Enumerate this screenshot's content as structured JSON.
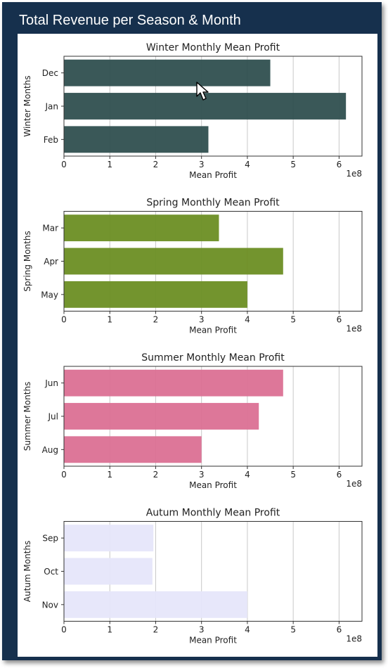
{
  "header": {
    "title": "Total Revenue per Season & Month"
  },
  "chart_data": [
    {
      "type": "bar",
      "orientation": "horizontal",
      "title": "Winter Monthly Mean Profit",
      "xlabel": "Mean Profit",
      "ylabel": "Winter Months",
      "categories": [
        "Dec",
        "Jan",
        "Feb"
      ],
      "values": [
        450000000,
        615000000,
        315000000
      ],
      "xlim": [
        0,
        650000000
      ],
      "xticks": [
        "0",
        "1",
        "2",
        "3",
        "4",
        "5",
        "6"
      ],
      "offset_label": "1e8",
      "grid": "vertical",
      "color": "#2f4f4f"
    },
    {
      "type": "bar",
      "orientation": "horizontal",
      "title": "Spring Monthly Mean Profit",
      "xlabel": "Mean Profit",
      "ylabel": "Spring Months",
      "categories": [
        "Mar",
        "Apr",
        "May"
      ],
      "values": [
        338000000,
        478000000,
        400000000
      ],
      "xlim": [
        0,
        650000000
      ],
      "xticks": [
        "0",
        "1",
        "2",
        "3",
        "4",
        "5",
        "6"
      ],
      "offset_label": "1e8",
      "grid": "vertical",
      "color": "#6b8e23"
    },
    {
      "type": "bar",
      "orientation": "horizontal",
      "title": "Summer Monthly Mean Profit",
      "xlabel": "Mean Profit",
      "ylabel": "Summer Months",
      "categories": [
        "Jun",
        "Jul",
        "Aug"
      ],
      "values": [
        478000000,
        425000000,
        300000000
      ],
      "xlim": [
        0,
        650000000
      ],
      "xticks": [
        "0",
        "1",
        "2",
        "3",
        "4",
        "5",
        "6"
      ],
      "offset_label": "1e8",
      "grid": "vertical",
      "color": "#db7093"
    },
    {
      "type": "bar",
      "orientation": "horizontal",
      "title": "Autum Monthly Mean Profit",
      "xlabel": "Mean Profit",
      "ylabel": "Autum Months",
      "categories": [
        "Sep",
        "Oct",
        "Nov"
      ],
      "values": [
        195000000,
        193000000,
        400000000
      ],
      "xlim": [
        0,
        650000000
      ],
      "xticks": [
        "0",
        "1",
        "2",
        "3",
        "4",
        "5",
        "6"
      ],
      "offset_label": "1e8",
      "grid": "vertical",
      "color": "#e6e6fa"
    }
  ]
}
